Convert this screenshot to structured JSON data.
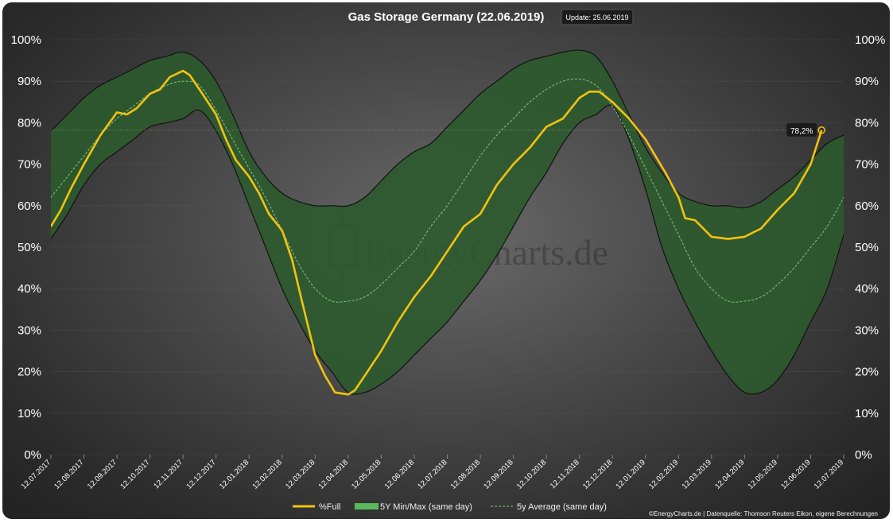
{
  "chart_data": {
    "type": "line",
    "title": "Gas Storage Germany (22.06.2019)",
    "update_badge": "Update: 25.06.2019",
    "watermark": "EnergyCharts.de",
    "credit": "©EnergyCharts.de | Datenquelle: Thomson Reuters Eikon, eigene Berechnungen",
    "ylim": [
      0,
      100
    ],
    "yticks": [
      "0%",
      "10%",
      "20%",
      "30%",
      "40%",
      "50%",
      "60%",
      "70%",
      "80%",
      "90%",
      "100%"
    ],
    "xticks": [
      "12.07.2017",
      "12.08.2017",
      "12.09.2017",
      "12.10.2017",
      "12.11.2017",
      "12.12.2017",
      "12.01.2018",
      "12.02.2018",
      "12.03.2018",
      "12.04.2018",
      "12.05.2018",
      "12.06.2018",
      "12.07.2018",
      "12.08.2018",
      "12.09.2018",
      "12.10.2018",
      "12.11.2018",
      "12.12.2018",
      "12.01.2019",
      "12.02.2019",
      "12.03.2019",
      "12.04.2019",
      "12.05.2019",
      "12.06.2019",
      "12.07.2019"
    ],
    "x_unit": "months since 12.07.2017",
    "current_value_label": "78,2%",
    "current_value": 78.2,
    "current_x": 23.33,
    "colors": {
      "full": "#f2c20f",
      "band": "#2e5a2e",
      "band_legend": "#5cb85c",
      "average": "#7ec87e"
    },
    "legend": [
      "%Full",
      "5Y Min/Max (same day)",
      "5y Average (same day)"
    ],
    "series": [
      {
        "name": "%Full",
        "x": [
          0,
          0.3,
          0.6,
          1,
          1.5,
          2,
          2.3,
          2.6,
          3,
          3.3,
          3.6,
          4,
          4.2,
          4.5,
          5,
          5.3,
          5.6,
          6,
          6.3,
          6.6,
          7,
          7.3,
          7.6,
          8,
          8.3,
          8.6,
          9,
          9.2,
          9.5,
          10,
          10.5,
          11,
          11.5,
          12,
          12.5,
          13,
          13.5,
          14,
          14.5,
          15,
          15.5,
          16,
          16.3,
          16.6,
          17,
          17.5,
          18,
          18.3,
          18.6,
          19,
          19.2,
          19.5,
          20,
          20.5,
          21,
          21.5,
          22,
          22.5,
          23,
          23.33
        ],
        "values": [
          55,
          59,
          64,
          70,
          77,
          82.5,
          82,
          83.5,
          87,
          88,
          91,
          92.5,
          91.5,
          88,
          82,
          76,
          71,
          67,
          63,
          58,
          54,
          47,
          37,
          24,
          19,
          15,
          14.5,
          15.5,
          19,
          25,
          32,
          38,
          43,
          49,
          55,
          58,
          65,
          70,
          74,
          79,
          81,
          86,
          87.5,
          87.5,
          85,
          81,
          76,
          72,
          68,
          62,
          57,
          56.5,
          52.5,
          52,
          52.5,
          54.5,
          59,
          63,
          70,
          78.2
        ]
      },
      {
        "name": "5Y Max",
        "x": [
          0,
          0.5,
          1,
          1.5,
          2,
          2.5,
          3,
          3.5,
          4,
          4.5,
          5,
          5.5,
          6,
          6.5,
          7,
          7.5,
          8,
          8.5,
          9,
          9.5,
          10,
          10.5,
          11,
          11.5,
          12,
          12.5,
          13,
          13.5,
          14,
          14.5,
          15,
          15.5,
          16,
          16.5,
          17,
          17.5,
          18,
          18.5,
          19,
          19.5,
          20,
          20.5,
          21,
          21.5,
          22,
          22.5,
          23,
          23.5,
          24
        ],
        "values": [
          78,
          82,
          86,
          89,
          91,
          93,
          95,
          96,
          97,
          95,
          90,
          82,
          73,
          67,
          63,
          61,
          60,
          60,
          60,
          62,
          66,
          70,
          73,
          75,
          79,
          83,
          87,
          90,
          93,
          95,
          96,
          97,
          97.5,
          96,
          90,
          82,
          74,
          68,
          63,
          61,
          60,
          60,
          59.5,
          61,
          64,
          67,
          71,
          75,
          77
        ]
      },
      {
        "name": "5Y Min",
        "x": [
          0,
          0.5,
          1,
          1.5,
          2,
          2.5,
          3,
          3.5,
          4,
          4.5,
          5,
          5.5,
          6,
          6.5,
          7,
          7.5,
          8,
          8.5,
          9,
          9.5,
          10,
          10.5,
          11,
          11.5,
          12,
          12.5,
          13,
          13.5,
          14,
          14.5,
          15,
          15.5,
          16,
          16.5,
          17,
          17.5,
          18,
          18.5,
          19,
          19.5,
          20,
          20.5,
          21,
          21.5,
          22,
          22.5,
          23,
          23.5,
          24
        ],
        "values": [
          52,
          58,
          65,
          70,
          73,
          76,
          79,
          80,
          81,
          83,
          78,
          70,
          60,
          50,
          40,
          32,
          25,
          20,
          15,
          15,
          17,
          20,
          24,
          28,
          32,
          37,
          42,
          48,
          55,
          62,
          68,
          75,
          80,
          82,
          84,
          76,
          64,
          50,
          40,
          32,
          25,
          19,
          15,
          15,
          18,
          24,
          32,
          40,
          53
        ]
      },
      {
        "name": "5y Average",
        "x": [
          0,
          0.5,
          1,
          1.5,
          2,
          2.5,
          3,
          3.5,
          4,
          4.5,
          5,
          5.5,
          6,
          6.5,
          7,
          7.5,
          8,
          8.5,
          9,
          9.5,
          10,
          10.5,
          11,
          11.5,
          12,
          12.5,
          13,
          13.5,
          14,
          14.5,
          15,
          15.5,
          16,
          16.5,
          17,
          17.5,
          18,
          18.5,
          19,
          19.5,
          20,
          20.5,
          21,
          21.5,
          22,
          22.5,
          23,
          23.5,
          24
        ],
        "values": [
          62,
          67,
          72,
          77,
          81,
          84,
          87,
          89,
          90,
          89,
          83,
          76,
          69,
          62,
          54,
          46,
          40,
          37,
          37,
          38,
          41,
          45,
          49,
          55,
          60,
          66,
          72,
          77,
          81,
          85,
          88,
          90,
          90.5,
          89,
          84,
          77,
          69,
          61,
          53,
          45,
          40,
          37,
          37,
          38,
          41,
          45,
          50,
          55,
          62
        ]
      }
    ]
  }
}
